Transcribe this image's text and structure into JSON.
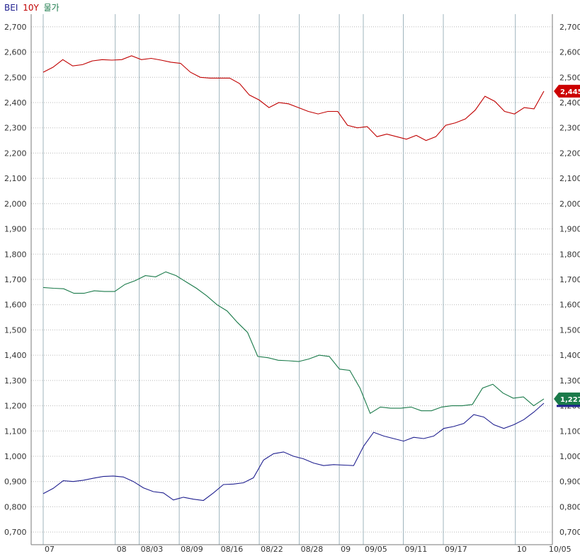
{
  "legend": {
    "items": [
      {
        "label": "BEI",
        "color": "#1f1f8f"
      },
      {
        "label": "10Y",
        "color": "#c00000"
      },
      {
        "label": "물가",
        "color": "#1a7a4a"
      }
    ]
  },
  "last_value_tags": [
    {
      "label": "2,445",
      "value": 2.445,
      "color": "#cc0000"
    },
    {
      "label": "1,227",
      "value": 1.227,
      "color": "#1a7a4a"
    }
  ],
  "chart_data": {
    "type": "line",
    "y_axis": {
      "range": [
        0.65,
        2.75
      ],
      "ticks": [
        0.7,
        0.8,
        0.9,
        1.0,
        1.1,
        1.2,
        1.3,
        1.4,
        1.5,
        1.6,
        1.7,
        1.8,
        1.9,
        2.0,
        2.1,
        2.2,
        2.3,
        2.4,
        2.5,
        2.6,
        2.7
      ],
      "tick_labels": [
        "0,700",
        "0,800",
        "0,900",
        "1,000",
        "1,100",
        "1,200",
        "1,300",
        "1,400",
        "1,500",
        "1,600",
        "1,700",
        "1,800",
        "1,900",
        "2,000",
        "2,100",
        "2,200",
        "2,300",
        "2,400",
        "2,500",
        "2,600",
        "2,700"
      ],
      "both_sides": true,
      "grid": true
    },
    "x_axis": {
      "n_points": 66,
      "ticks": [
        {
          "index": 0,
          "label": "07"
        },
        {
          "index": 9,
          "label": "08"
        },
        {
          "index": 12,
          "label": "08/03"
        },
        {
          "index": 17,
          "label": "08/09"
        },
        {
          "index": 22,
          "label": "08/16"
        },
        {
          "index": 27,
          "label": "08/22"
        },
        {
          "index": 32,
          "label": "08/28"
        },
        {
          "index": 37,
          "label": "09"
        },
        {
          "index": 40,
          "label": "09/05"
        },
        {
          "index": 45,
          "label": "09/11"
        },
        {
          "index": 50,
          "label": "09/17"
        },
        {
          "index": 59,
          "label": "10"
        },
        {
          "index": 63,
          "label": "10/05"
        }
      ]
    },
    "series": [
      {
        "name": "10Y",
        "color": "#c00000",
        "values": [
          2.52,
          2.54,
          2.57,
          2.545,
          2.55,
          2.565,
          2.57,
          2.568,
          2.57,
          2.585,
          2.57,
          2.575,
          2.568,
          2.56,
          2.555,
          2.52,
          2.5,
          2.497,
          2.497,
          2.497,
          2.475,
          2.43,
          2.41,
          2.38,
          2.4,
          2.395,
          2.38,
          2.365,
          2.355,
          2.365,
          2.365,
          2.31,
          2.3,
          2.305,
          2.265,
          2.275,
          2.265,
          2.255,
          2.27,
          2.25,
          2.265,
          2.31,
          2.32,
          2.335,
          2.37,
          2.425,
          2.405,
          2.365,
          2.355,
          2.38,
          2.375,
          2.445
        ]
      },
      {
        "name": "물가",
        "color": "#1a7a4a",
        "values": [
          1.668,
          1.665,
          1.663,
          1.645,
          1.645,
          1.655,
          1.652,
          1.652,
          1.68,
          1.695,
          1.715,
          1.71,
          1.73,
          1.715,
          1.69,
          1.665,
          1.635,
          1.6,
          1.575,
          1.53,
          1.49,
          1.395,
          1.39,
          1.38,
          1.378,
          1.375,
          1.385,
          1.4,
          1.395,
          1.345,
          1.34,
          1.27,
          1.17,
          1.195,
          1.19,
          1.19,
          1.195,
          1.18,
          1.18,
          1.195,
          1.2,
          1.2,
          1.205,
          1.27,
          1.285,
          1.25,
          1.23,
          1.235,
          1.2,
          1.227
        ]
      },
      {
        "name": "BEI",
        "color": "#1f1f8f",
        "values": [
          0.852,
          0.873,
          0.903,
          0.9,
          0.905,
          0.913,
          0.92,
          0.922,
          0.918,
          0.9,
          0.875,
          0.86,
          0.855,
          0.827,
          0.838,
          0.83,
          0.825,
          0.855,
          0.888,
          0.89,
          0.895,
          0.915,
          0.985,
          1.01,
          1.017,
          1.0,
          0.99,
          0.973,
          0.963,
          0.967,
          0.965,
          0.963,
          1.04,
          1.095,
          1.08,
          1.07,
          1.06,
          1.075,
          1.07,
          1.08,
          1.11,
          1.118,
          1.13,
          1.165,
          1.155,
          1.125,
          1.11,
          1.125,
          1.145,
          1.175,
          1.21
        ]
      }
    ]
  }
}
